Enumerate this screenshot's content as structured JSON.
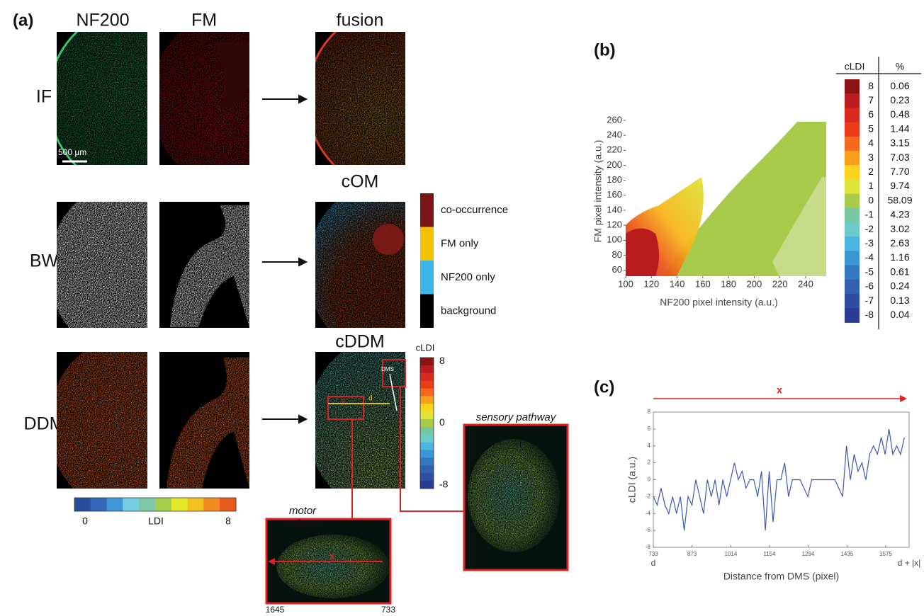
{
  "figure": {
    "panel_label": "(a)",
    "columns": [
      "NF200",
      "FM",
      "fusion"
    ],
    "rows": [
      "IF",
      "BW",
      "DDM"
    ],
    "scale_bar": "500 µm",
    "com_title": "cOM",
    "cddm_title": "cDDM",
    "com_legend": [
      {
        "label": "co-occurrence",
        "color": "#7a1616"
      },
      {
        "label": "FM only",
        "color": "#f2c200"
      },
      {
        "label": "NF200 only",
        "color": "#3cb4e6"
      },
      {
        "label": "background",
        "color": "#000000"
      }
    ],
    "cldi_bar": {
      "title": "cLDI",
      "ticks": [
        8,
        0,
        -8
      ],
      "range": [
        -8,
        8
      ]
    },
    "ldi_bar": {
      "label": "LDI",
      "ticks": [
        0,
        8
      ],
      "colors": [
        "#2a4a9c",
        "#3566b8",
        "#3f96d6",
        "#74cde0",
        "#7ec8a6",
        "#a6cc4c",
        "#e6e628",
        "#f2c11e",
        "#f28c22",
        "#e85a20"
      ]
    },
    "dms": "DMS",
    "d": "d",
    "x": "x",
    "motor_pathway": [
      "motor",
      "pathway"
    ],
    "sensory_pathway": "sensory pathway",
    "motor_x": "x",
    "motor_range": [
      1645,
      733
    ]
  },
  "chart_data": [
    {
      "type": "scatter",
      "panel_label": "(b)",
      "xlabel": "NF200 pixel intensity (a.u.)",
      "ylabel": "FM pixel intensity (a.u.)",
      "xlim": [
        100,
        256
      ],
      "ylim": [
        52,
        260
      ],
      "xticks": [
        100,
        120,
        140,
        160,
        180,
        200,
        220,
        240
      ],
      "yticks": [
        60,
        80,
        100,
        120,
        140,
        160,
        180,
        200,
        220,
        240,
        260
      ],
      "color_table": {
        "headers": [
          "cLDI",
          "%"
        ],
        "levels": [
          8,
          7,
          6,
          5,
          4,
          3,
          2,
          1,
          0,
          -1,
          -2,
          -3,
          -4,
          -5,
          -6,
          -7,
          -8
        ],
        "percents": [
          "0.06",
          "0.23",
          "0.48",
          "1.44",
          "3.15",
          "7.03",
          "7.70",
          "9.74",
          "58.09",
          "4.23",
          "3.02",
          "2.63",
          "1.16",
          "0.61",
          "0.24",
          "0.13",
          "0.04"
        ],
        "colors": [
          "#8b1414",
          "#b81c1c",
          "#d62a1e",
          "#ec3a1c",
          "#f36a1e",
          "#f8a01c",
          "#fbd41c",
          "#dde43a",
          "#a8ca4a",
          "#78c6a2",
          "#6ccbc8",
          "#48b6e0",
          "#3a96d4",
          "#3478c2",
          "#3460b0",
          "#2e4ea2",
          "#2a3c94"
        ]
      }
    },
    {
      "type": "line",
      "panel_label": "(c)",
      "arrow_label": "x",
      "xlabel": "Distance from DMS (pixel)",
      "ylabel": "cLDI (a.u.)",
      "x_start_label": "d",
      "x_end_label": "d + |x|",
      "xlim": [
        733,
        1660
      ],
      "ylim": [
        -8,
        8
      ],
      "xticks": [
        733,
        873,
        1014,
        1154,
        1294,
        1435,
        1575
      ],
      "yticks": [
        -8,
        -6,
        -4,
        -2,
        0,
        2,
        4,
        6,
        8
      ],
      "color": "#3a5ab0",
      "x": [
        733,
        747,
        761,
        775,
        789,
        803,
        817,
        831,
        845,
        859,
        873,
        887,
        901,
        915,
        929,
        943,
        957,
        971,
        985,
        999,
        1013,
        1027,
        1041,
        1055,
        1069,
        1083,
        1097,
        1111,
        1125,
        1139,
        1153,
        1167,
        1181,
        1195,
        1209,
        1223,
        1237,
        1251,
        1265,
        1279,
        1293,
        1307,
        1321,
        1335,
        1349,
        1363,
        1377,
        1391,
        1405,
        1419,
        1433,
        1447,
        1461,
        1475,
        1489,
        1503,
        1517,
        1531,
        1545,
        1559,
        1573,
        1587,
        1601,
        1615,
        1629,
        1643
      ],
      "values": [
        -2,
        -3,
        -1,
        -3,
        -4,
        -2,
        -4,
        -2,
        -6,
        -2,
        -3,
        0,
        -2,
        -4,
        0,
        -2,
        0,
        -3,
        0,
        -2,
        0,
        2,
        0,
        1,
        -1,
        0,
        0,
        -2,
        1,
        -6,
        1,
        -5,
        0,
        0,
        2,
        -2,
        0,
        0,
        0,
        -1,
        -2,
        0,
        0,
        0,
        0,
        0,
        0,
        0,
        -1,
        -2,
        4,
        0,
        3,
        1,
        2,
        0,
        3,
        4,
        3,
        5,
        3,
        6,
        3,
        4,
        3,
        5
      ]
    }
  ]
}
